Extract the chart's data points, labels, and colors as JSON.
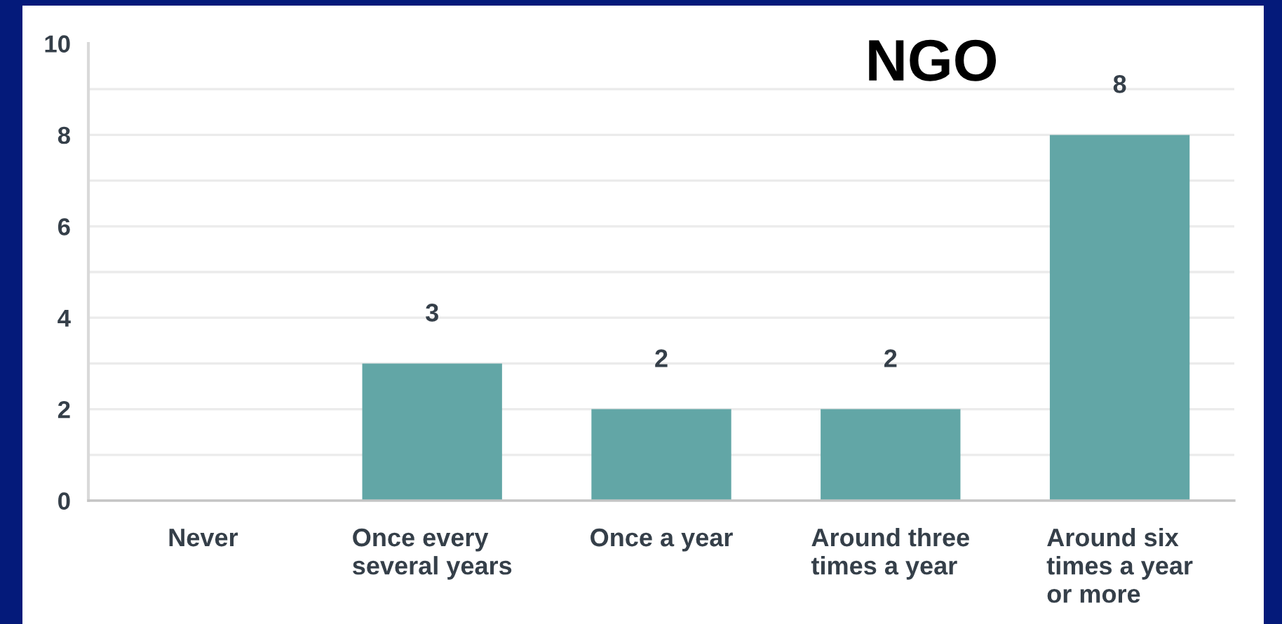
{
  "chart_data": {
    "type": "bar",
    "title": "NGO",
    "categories": [
      "Never",
      "Once every\nseveral years",
      "Once a year",
      "Around three\ntimes a year",
      "Around six\ntimes a year\nor more"
    ],
    "values": [
      0,
      3,
      2,
      2,
      8
    ],
    "color": "#62a6a6",
    "value_labels": [
      null,
      "3",
      "2",
      "2",
      "8"
    ],
    "ylim": [
      0,
      10
    ],
    "yticks": [
      0,
      {
        "value": 1,
        "label": null
      },
      2,
      {
        "value": 3,
        "label": null
      },
      4,
      {
        "value": 5,
        "label": null
      },
      6,
      {
        "value": 7,
        "label": null
      },
      8,
      {
        "value": 9,
        "label": null
      },
      10
    ],
    "grid": "y"
  }
}
